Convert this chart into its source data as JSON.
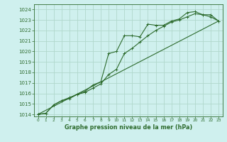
{
  "title": "Graphe pression niveau de la mer (hPa)",
  "background_color": "#cff0ee",
  "grid_color": "#b0d8cc",
  "line_color": "#2d6b2d",
  "xlim": [
    -0.5,
    23.5
  ],
  "ylim": [
    1013.8,
    1024.5
  ],
  "xticks": [
    0,
    1,
    2,
    3,
    4,
    5,
    6,
    7,
    8,
    9,
    10,
    11,
    12,
    13,
    14,
    15,
    16,
    17,
    18,
    19,
    20,
    21,
    22,
    23
  ],
  "yticks": [
    1014,
    1015,
    1016,
    1017,
    1018,
    1019,
    1020,
    1021,
    1022,
    1023,
    1024
  ],
  "series1_x": [
    0,
    1,
    2,
    3,
    4,
    5,
    6,
    7,
    8,
    9,
    10,
    11,
    12,
    13,
    14,
    15,
    16,
    17,
    18,
    19,
    20,
    21,
    22,
    23
  ],
  "series1_y": [
    1014.0,
    1014.1,
    1014.9,
    1015.3,
    1015.5,
    1015.9,
    1016.2,
    1016.8,
    1017.1,
    1019.8,
    1020.0,
    1021.5,
    1021.5,
    1021.4,
    1022.6,
    1022.5,
    1022.5,
    1022.9,
    1023.1,
    1023.7,
    1023.8,
    1023.5,
    1023.5,
    1022.9
  ],
  "series2_x": [
    0,
    1,
    2,
    3,
    4,
    5,
    6,
    7,
    8,
    9,
    10,
    11,
    12,
    13,
    14,
    15,
    16,
    17,
    18,
    19,
    20,
    21,
    22,
    23
  ],
  "series2_y": [
    1014.0,
    1014.1,
    1014.9,
    1015.3,
    1015.6,
    1015.9,
    1016.1,
    1016.5,
    1016.9,
    1017.8,
    1018.3,
    1019.8,
    1020.3,
    1020.9,
    1021.5,
    1022.0,
    1022.4,
    1022.8,
    1023.0,
    1023.3,
    1023.6,
    1023.5,
    1023.3,
    1022.9
  ],
  "series3_x": [
    0,
    23
  ],
  "series3_y": [
    1014.0,
    1022.9
  ],
  "figsize": [
    3.2,
    2.0
  ],
  "dpi": 100
}
